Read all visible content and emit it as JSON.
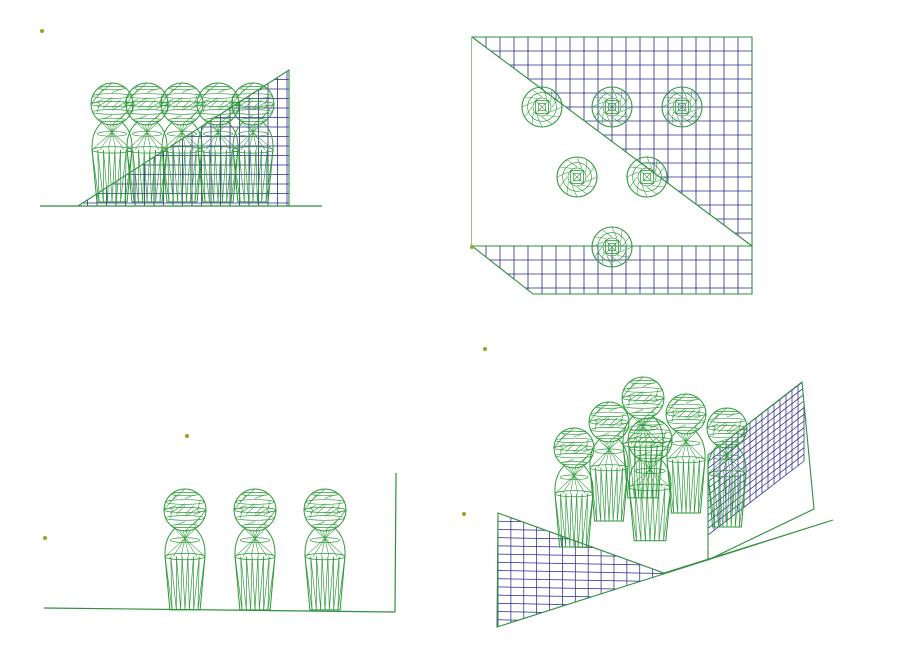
{
  "colors": {
    "figure": "#2f9a3a",
    "grid": "#2a2a8c",
    "ground": "#2f8f3f",
    "marker": "#9aa61e",
    "background": "#ffffff"
  },
  "views": [
    {
      "id": "front",
      "figure_count": 5
    },
    {
      "id": "top",
      "figure_count": 6
    },
    {
      "id": "side",
      "figure_count": 3
    },
    {
      "id": "perspective",
      "figure_count": 6
    }
  ]
}
